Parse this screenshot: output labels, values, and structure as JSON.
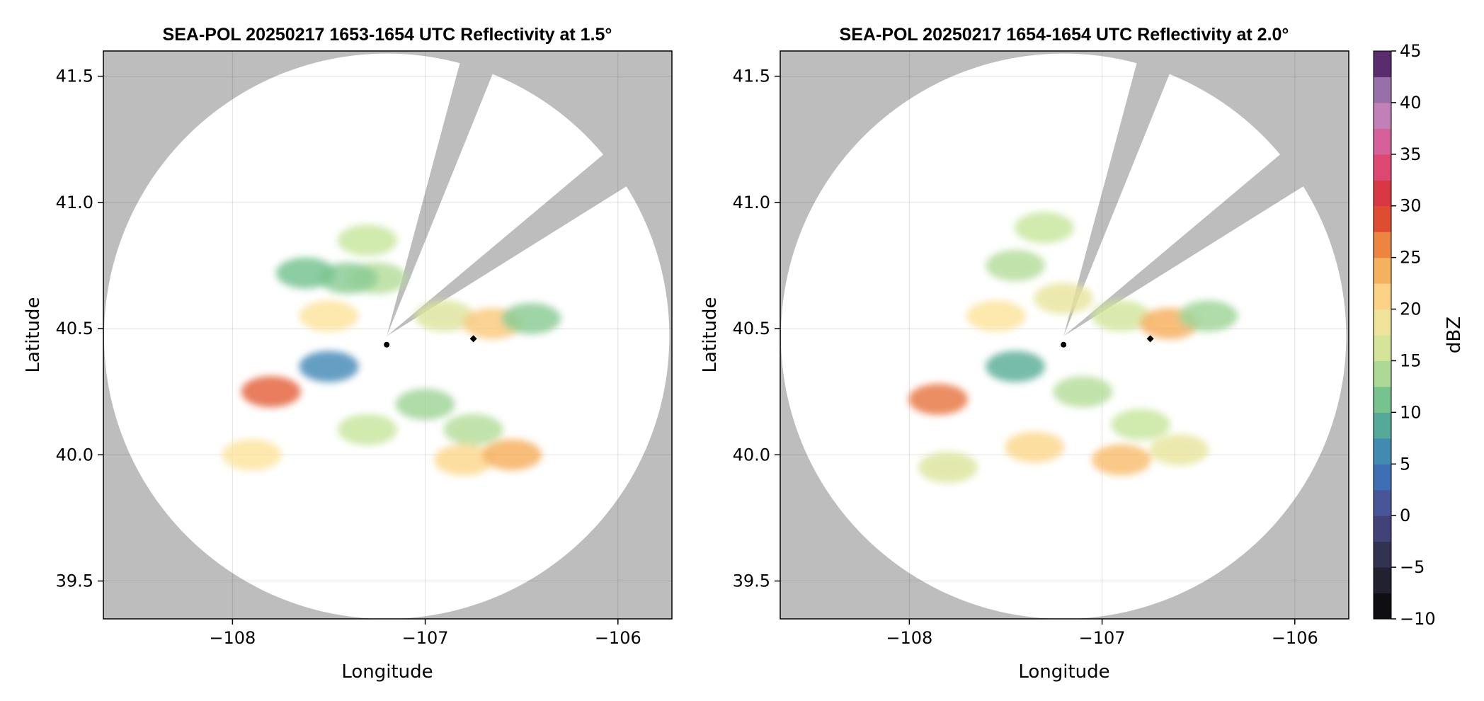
{
  "chart_data": {
    "type": "heatmap",
    "colorbar": {
      "label": "dBZ",
      "ticks": [
        "45",
        "40",
        "35",
        "30",
        "25",
        "20",
        "15",
        "10",
        "5",
        "0",
        "−5",
        "−10"
      ],
      "range": [
        -10,
        45
      ],
      "step": 2.5
    },
    "panels": [
      {
        "title": "SEA-POL 20250217 1653-1654 UTC Reflectivity at 1.5°",
        "xlabel": "Longitude",
        "ylabel": "Latitude",
        "xlim": [
          -108.67,
          -105.72
        ],
        "ylim": [
          39.35,
          41.6
        ],
        "xticks": [
          "−108",
          "−107",
          "−106"
        ],
        "yticks": [
          "41.5",
          "41.0",
          "40.5",
          "40.0",
          "39.5"
        ],
        "radar_center": [
          -107.2,
          40.47
        ],
        "radar_range_deg_lat": 1.12,
        "blocked_sectors_deg": [
          [
            15,
            22
          ],
          [
            50,
            58
          ]
        ],
        "marker": [
          -106.75,
          40.46
        ],
        "echoes": [
          {
            "lon": -107.25,
            "lat": 40.7,
            "dbz": 14
          },
          {
            "lon": -107.4,
            "lat": 40.7,
            "dbz": 12
          },
          {
            "lon": -107.3,
            "lat": 40.85,
            "dbz": 15
          },
          {
            "lon": -107.5,
            "lat": 40.55,
            "dbz": 20
          },
          {
            "lon": -107.62,
            "lat": 40.72,
            "dbz": 11
          },
          {
            "lon": -106.9,
            "lat": 40.55,
            "dbz": 17
          },
          {
            "lon": -106.65,
            "lat": 40.52,
            "dbz": 22
          },
          {
            "lon": -106.45,
            "lat": 40.54,
            "dbz": 12
          },
          {
            "lon": -107.5,
            "lat": 40.35,
            "dbz": 6
          },
          {
            "lon": -107.8,
            "lat": 40.25,
            "dbz": 28
          },
          {
            "lon": -107.9,
            "lat": 40.0,
            "dbz": 20
          },
          {
            "lon": -107.0,
            "lat": 40.2,
            "dbz": 13
          },
          {
            "lon": -106.75,
            "lat": 40.1,
            "dbz": 14
          },
          {
            "lon": -106.8,
            "lat": 39.98,
            "dbz": 21
          },
          {
            "lon": -106.55,
            "lat": 40.0,
            "dbz": 24
          },
          {
            "lon": -107.3,
            "lat": 40.1,
            "dbz": 15
          }
        ]
      },
      {
        "title": "SEA-POL 20250217 1654-1654 UTC Reflectivity at 2.0°",
        "xlabel": "Longitude",
        "ylabel": "Latitude",
        "xlim": [
          -108.67,
          -105.72
        ],
        "ylim": [
          39.35,
          41.6
        ],
        "xticks": [
          "−108",
          "−107",
          "−106"
        ],
        "yticks": [
          "41.5",
          "41.0",
          "40.5",
          "40.0",
          "39.5"
        ],
        "radar_center": [
          -107.2,
          40.47
        ],
        "radar_range_deg_lat": 1.12,
        "blocked_sectors_deg": [
          [
            15,
            22
          ],
          [
            50,
            58
          ]
        ],
        "marker": [
          -106.75,
          40.46
        ],
        "echoes": [
          {
            "lon": -107.3,
            "lat": 40.9,
            "dbz": 15
          },
          {
            "lon": -107.45,
            "lat": 40.75,
            "dbz": 14
          },
          {
            "lon": -107.55,
            "lat": 40.55,
            "dbz": 20
          },
          {
            "lon": -107.2,
            "lat": 40.62,
            "dbz": 18
          },
          {
            "lon": -106.9,
            "lat": 40.55,
            "dbz": 16
          },
          {
            "lon": -106.65,
            "lat": 40.52,
            "dbz": 24
          },
          {
            "lon": -106.45,
            "lat": 40.55,
            "dbz": 13
          },
          {
            "lon": -107.45,
            "lat": 40.35,
            "dbz": 9
          },
          {
            "lon": -107.85,
            "lat": 40.22,
            "dbz": 27
          },
          {
            "lon": -107.1,
            "lat": 40.25,
            "dbz": 14
          },
          {
            "lon": -106.8,
            "lat": 40.12,
            "dbz": 15
          },
          {
            "lon": -106.9,
            "lat": 39.98,
            "dbz": 23
          },
          {
            "lon": -106.6,
            "lat": 40.02,
            "dbz": 18
          },
          {
            "lon": -107.35,
            "lat": 40.03,
            "dbz": 21
          },
          {
            "lon": -107.8,
            "lat": 39.95,
            "dbz": 17
          }
        ]
      }
    ]
  }
}
